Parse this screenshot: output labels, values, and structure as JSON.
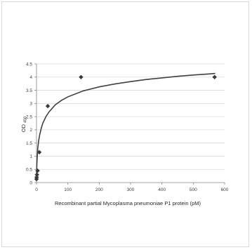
{
  "chart_data": {
    "type": "scatter",
    "xlabel": "Recombinant partial Mycoplasma pneumoniae  P1 protein (pM)",
    "ylabel": "OD",
    "ylabel_subscript": "450",
    "xlim": [
      0,
      600
    ],
    "ylim": [
      0,
      4.5
    ],
    "x_ticks": [
      0,
      100,
      200,
      300,
      400,
      500,
      600
    ],
    "y_ticks": [
      "0",
      "0.5",
      "1",
      "1.5",
      "2",
      "2.5",
      "3",
      "3.5",
      "4",
      "4.5"
    ],
    "grid": true,
    "legend": "none",
    "marker": "diamond",
    "series": [
      {
        "points": [
          {
            "x": 0,
            "y": 0.13
          },
          {
            "x": 0.5,
            "y": 0.2
          },
          {
            "x": 1.5,
            "y": 0.3
          },
          {
            "x": 3.5,
            "y": 0.45
          },
          {
            "x": 9,
            "y": 1.15
          },
          {
            "x": 36,
            "y": 2.9
          },
          {
            "x": 142,
            "y": 4.0
          },
          {
            "x": 568,
            "y": 4.0
          }
        ]
      }
    ],
    "fit_curve": {
      "type": "logarithmic",
      "points": [
        [
          0.05,
          0.1
        ],
        [
          0.3,
          0.35
        ],
        [
          1,
          0.65
        ],
        [
          2,
          0.9
        ],
        [
          4,
          1.3
        ],
        [
          7,
          1.6
        ],
        [
          10,
          1.8
        ],
        [
          15,
          2.05
        ],
        [
          20,
          2.25
        ],
        [
          30,
          2.5
        ],
        [
          40,
          2.68
        ],
        [
          60,
          2.95
        ],
        [
          80,
          3.12
        ],
        [
          100,
          3.25
        ],
        [
          150,
          3.48
        ],
        [
          200,
          3.63
        ],
        [
          250,
          3.74
        ],
        [
          300,
          3.83
        ],
        [
          350,
          3.91
        ],
        [
          400,
          3.97
        ],
        [
          450,
          4.03
        ],
        [
          500,
          4.08
        ],
        [
          550,
          4.12
        ],
        [
          570,
          4.14
        ]
      ]
    },
    "colors": {
      "marker": "#3a3a3a",
      "curve": "#404040",
      "grid": "#d9d9d9",
      "axis": "#868686"
    }
  }
}
